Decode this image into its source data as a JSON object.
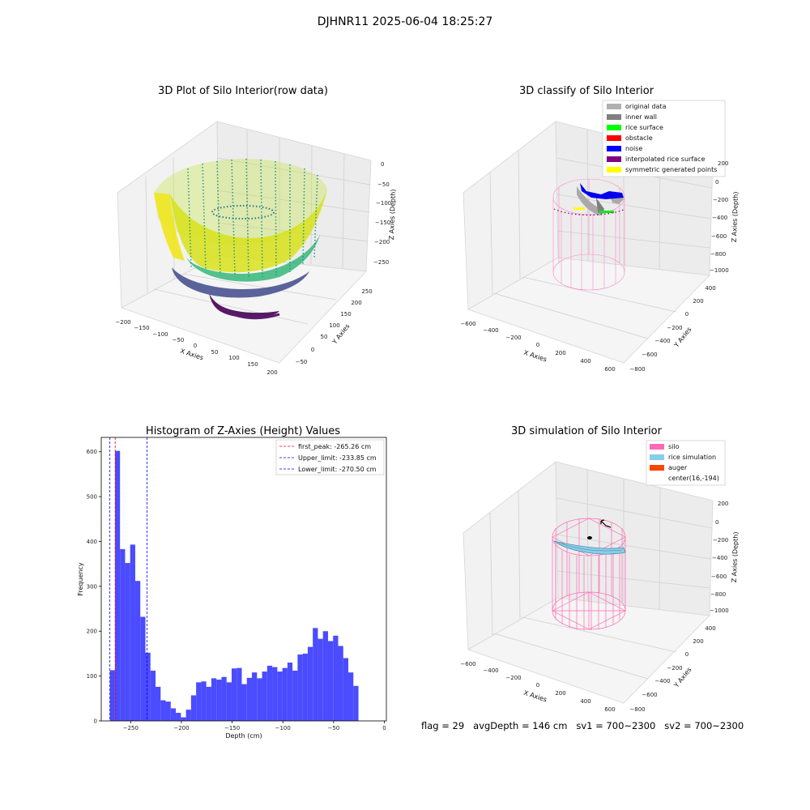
{
  "figure": {
    "suptitle": "DJHNR11 2025-06-04 18:25:27"
  },
  "panels": {
    "raw": {
      "title": "3D Plot of Silo Interior(row data)",
      "xlabel": "X Axies",
      "ylabel": "Y Axies",
      "zlabel": "Z Axies (Depth)",
      "xticks": [
        "−200",
        "−150",
        "−100",
        "−50",
        "0",
        "50",
        "100",
        "150",
        "200"
      ],
      "yticks": [
        "−50",
        "0",
        "50",
        "100",
        "150",
        "200",
        "250"
      ],
      "zticks": [
        "0",
        "−50",
        "−100",
        "−150",
        "−200",
        "−250"
      ]
    },
    "classify": {
      "title": "3D classify of Silo Interior",
      "xlabel": "X Axies",
      "ylabel": "Y Axies",
      "zlabel": "Z Axies (Depth)",
      "xticks": [
        "−600",
        "−400",
        "−200",
        "0",
        "200",
        "400",
        "600"
      ],
      "yticks": [
        "−800",
        "−600",
        "−400",
        "−200",
        "0",
        "200",
        "400"
      ],
      "zticks": [
        "200",
        "0",
        "−200",
        "−400",
        "−600",
        "−800",
        "−1000"
      ],
      "legend": [
        {
          "label": "original data",
          "color": "#b0b0b0"
        },
        {
          "label": "inner wall",
          "color": "#808080"
        },
        {
          "label": "rice surface",
          "color": "#00ff00"
        },
        {
          "label": "obstacle",
          "color": "#ff0000"
        },
        {
          "label": "noise",
          "color": "#0000ff"
        },
        {
          "label": "interpolated rice surface",
          "color": "#800080"
        },
        {
          "label": "symmetric generated points",
          "color": "#ffff00"
        }
      ]
    },
    "simulation": {
      "title": "3D simulation of Silo Interior",
      "xlabel": "X Axies",
      "ylabel": "Y Axies",
      "zlabel": "Z Axies (Depth)",
      "xticks": [
        "−600",
        "−400",
        "−200",
        "0",
        "200",
        "400",
        "600"
      ],
      "yticks": [
        "−800",
        "−600",
        "−400",
        "−200",
        "0",
        "200",
        "400"
      ],
      "zticks": [
        "200",
        "0",
        "−200",
        "−400",
        "−600",
        "−800",
        "−1000"
      ],
      "legend": [
        {
          "label": "silo",
          "color": "#ff69b4"
        },
        {
          "label": "rice simulation",
          "color": "#87ceeb"
        },
        {
          "label": "auger",
          "color": "#ff4500"
        },
        {
          "label": "center(16,-194)",
          "color": ""
        }
      ]
    }
  },
  "chart_data": [
    {
      "type": "bar",
      "title": "Histogram of Z-Axies (Height) Values",
      "xlabel": "Depth (cm)",
      "ylabel": "Frequency",
      "xlim": [
        -279,
        2
      ],
      "ylim": [
        0,
        632
      ],
      "xticks": [
        -250,
        -200,
        -150,
        -100,
        -50,
        0
      ],
      "xtick_labels": [
        "−250",
        "−200",
        "−150",
        "−100",
        "−50",
        "0"
      ],
      "yticks": [
        0,
        100,
        200,
        300,
        400,
        500,
        600
      ],
      "bar_color": "#4b4bff",
      "bin_start": -270.5,
      "bin_width": 5.0,
      "values": [
        113,
        602,
        383,
        352,
        393,
        312,
        232,
        152,
        112,
        76,
        46,
        43,
        28,
        18,
        8,
        25,
        57,
        86,
        88,
        76,
        95,
        92,
        98,
        86,
        117,
        118,
        82,
        96,
        108,
        95,
        110,
        123,
        120,
        110,
        118,
        130,
        112,
        148,
        150,
        165,
        207,
        183,
        200,
        178,
        190,
        167,
        140,
        108,
        78
      ],
      "lines": [
        {
          "label": "first_peak: -265.26 cm",
          "x": -265.26,
          "color": "#ff0000"
        },
        {
          "label": "Upper_limit: -233.85 cm",
          "x": -233.85,
          "color": "#0000ff"
        },
        {
          "label": "Lower_limit: -270.50 cm",
          "x": -270.5,
          "color": "#0000ff"
        }
      ],
      "legend_position": "top-right"
    }
  ],
  "status": {
    "flag": "flag = 29",
    "avg_depth": "avgDepth = 146 cm",
    "sv1": "sv1 = 700~2300",
    "sv2": "sv2 = 700~2300"
  }
}
